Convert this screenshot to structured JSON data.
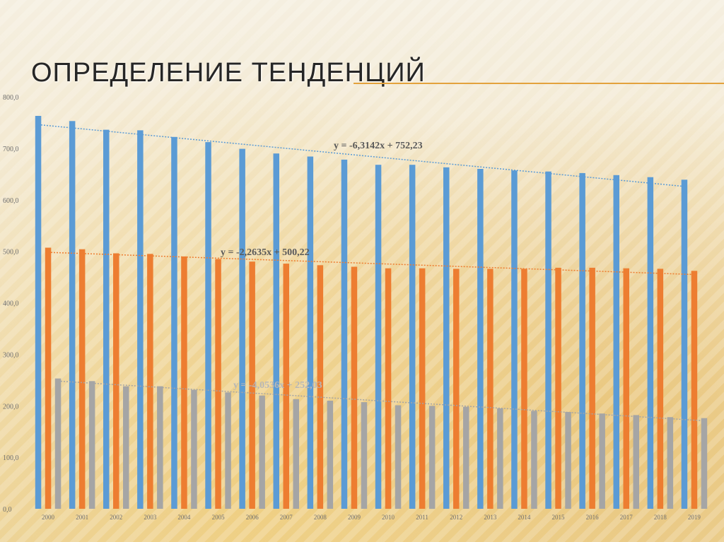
{
  "slide": {
    "title": "ОПРЕДЕЛЕНИЕ ТЕНДЕНЦИЙ"
  },
  "chart_data": {
    "type": "bar",
    "title": "",
    "xlabel": "",
    "ylabel": "",
    "ylim": [
      0,
      800
    ],
    "yticks": [
      "0,0",
      "100,0",
      "200,0",
      "300,0",
      "400,0",
      "500,0",
      "600,0",
      "700,0",
      "800,0"
    ],
    "grid": false,
    "categories": [
      "2000",
      "2001",
      "2002",
      "2003",
      "2004",
      "2005",
      "2006",
      "2007",
      "2008",
      "2009",
      "2010",
      "2011",
      "2012",
      "2013",
      "2014",
      "2015",
      "2016",
      "2017",
      "2018",
      "2019"
    ],
    "series": [
      {
        "color": "#5b9bd5",
        "values": [
          763,
          753,
          736,
          735,
          722,
          712,
          699,
          690,
          684,
          678,
          668,
          668,
          663,
          660,
          657,
          655,
          652,
          648,
          644,
          639
        ]
      },
      {
        "color": "#ed7d31",
        "values": [
          507,
          504,
          496,
          495,
          490,
          485,
          480,
          476,
          473,
          470,
          467,
          467,
          466,
          466,
          466,
          468,
          468,
          467,
          466,
          462
        ]
      },
      {
        "color": "#a5a5a5",
        "values": [
          253,
          248,
          238,
          238,
          231,
          226,
          220,
          213,
          210,
          207,
          201,
          200,
          198,
          195,
          190,
          188,
          185,
          182,
          178,
          176
        ]
      }
    ],
    "trendlines": [
      {
        "series": 0,
        "label": "y = -6,3142x + 752,23",
        "slope": -6.3142,
        "intercept": 752.23,
        "label_color": "#595959"
      },
      {
        "series": 1,
        "label": "y = -2,2635x + 500,22",
        "slope": -2.2635,
        "intercept": 500.22,
        "label_color": "#595959"
      },
      {
        "series": 2,
        "label": "y = -4,0536x + 252,03",
        "slope": -4.0536,
        "intercept": 252.03,
        "label_color": "#b7b7b7"
      }
    ]
  }
}
